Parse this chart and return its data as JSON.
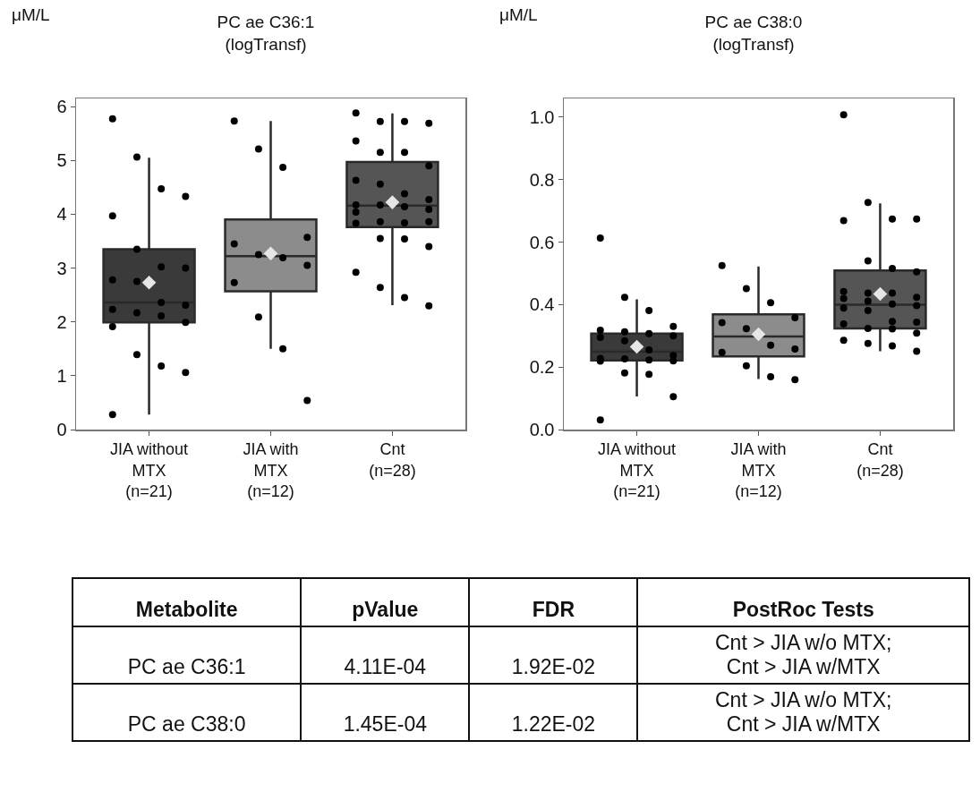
{
  "chart_data": [
    {
      "type": "box",
      "title": "PC ae C36:1\n(logTransf)",
      "ylabel": "μM/L",
      "categories": [
        "JIA without\nMTX\n(n=21)",
        "JIA with\nMTX\n(n=12)",
        "Cnt\n(n=28)"
      ],
      "colors": [
        "#3a3a3a",
        "#8c8c8c",
        "#555555"
      ],
      "boxes": [
        {
          "low": 0.28,
          "q1": 1.99,
          "median": 2.36,
          "q3": 3.35,
          "high": 5.05,
          "mean": 2.73
        },
        {
          "low": 1.5,
          "q1": 2.57,
          "median": 3.22,
          "q3": 3.9,
          "high": 5.73,
          "mean": 3.27
        },
        {
          "low": 2.31,
          "q1": 3.76,
          "median": 4.16,
          "q3": 4.97,
          "high": 5.87,
          "mean": 4.22
        }
      ],
      "series": [
        {
          "type": "scatter",
          "color": "#000000",
          "x": [
            "JIA without\nMTX\n(n=21)",
            "JIA without\nMTX\n(n=21)",
            "JIA without\nMTX\n(n=21)",
            "JIA without\nMTX\n(n=21)",
            "JIA without\nMTX\n(n=21)",
            "JIA without\nMTX\n(n=21)",
            "JIA without\nMTX\n(n=21)",
            "JIA without\nMTX\n(n=21)",
            "JIA without\nMTX\n(n=21)",
            "JIA without\nMTX\n(n=21)",
            "JIA without\nMTX\n(n=21)",
            "JIA without\nMTX\n(n=21)",
            "JIA without\nMTX\n(n=21)",
            "JIA without\nMTX\n(n=21)",
            "JIA without\nMTX\n(n=21)",
            "JIA without\nMTX\n(n=21)",
            "JIA without\nMTX\n(n=21)",
            "JIA without\nMTX\n(n=21)",
            "JIA without\nMTX\n(n=21)",
            "JIA without\nMTX\n(n=21)",
            "JIA without\nMTX\n(n=21)"
          ],
          "values": [
            5.77,
            5.06,
            4.47,
            4.33,
            3.97,
            3.35,
            3.02,
            3.0,
            2.78,
            2.75,
            2.36,
            2.31,
            2.23,
            2.17,
            2.11,
            1.99,
            1.91,
            1.39,
            1.18,
            1.06,
            0.28
          ]
        },
        {
          "type": "scatter",
          "color": "#000000",
          "x": [
            "JIA with\nMTX\n(n=12)",
            "JIA with\nMTX\n(n=12)",
            "JIA with\nMTX\n(n=12)",
            "JIA with\nMTX\n(n=12)",
            "JIA with\nMTX\n(n=12)",
            "JIA with\nMTX\n(n=12)",
            "JIA with\nMTX\n(n=12)",
            "JIA with\nMTX\n(n=12)",
            "JIA with\nMTX\n(n=12)",
            "JIA with\nMTX\n(n=12)",
            "JIA with\nMTX\n(n=12)",
            "JIA with\nMTX\n(n=12)"
          ],
          "values": [
            5.73,
            5.21,
            4.87,
            3.57,
            3.45,
            3.25,
            3.19,
            3.05,
            2.73,
            2.09,
            1.5,
            0.54
          ]
        },
        {
          "type": "scatter",
          "color": "#000000",
          "x": [
            "Cnt\n(n=28)",
            "Cnt\n(n=28)",
            "Cnt\n(n=28)",
            "Cnt\n(n=28)",
            "Cnt\n(n=28)",
            "Cnt\n(n=28)",
            "Cnt\n(n=28)",
            "Cnt\n(n=28)",
            "Cnt\n(n=28)",
            "Cnt\n(n=28)",
            "Cnt\n(n=28)",
            "Cnt\n(n=28)",
            "Cnt\n(n=28)",
            "Cnt\n(n=28)",
            "Cnt\n(n=28)",
            "Cnt\n(n=28)",
            "Cnt\n(n=28)",
            "Cnt\n(n=28)",
            "Cnt\n(n=28)",
            "Cnt\n(n=28)",
            "Cnt\n(n=28)",
            "Cnt\n(n=28)",
            "Cnt\n(n=28)",
            "Cnt\n(n=28)",
            "Cnt\n(n=28)",
            "Cnt\n(n=28)",
            "Cnt\n(n=28)",
            "Cnt\n(n=28)"
          ],
          "values": [
            5.88,
            5.72,
            5.72,
            5.69,
            5.36,
            5.15,
            5.15,
            4.9,
            4.63,
            4.56,
            4.38,
            4.27,
            4.17,
            4.17,
            4.14,
            4.09,
            4.04,
            3.86,
            3.84,
            3.86,
            3.83,
            3.55,
            3.54,
            3.4,
            2.92,
            2.64,
            2.45,
            2.3
          ]
        }
      ],
      "ylim": [
        0,
        6.15
      ],
      "yticks": [
        0,
        1,
        2,
        3,
        4,
        5,
        6
      ],
      "grid": false,
      "marker": "circle"
    },
    {
      "type": "box",
      "title": "PC ae C38:0\n(logTransf)",
      "ylabel": "μM/L",
      "categories": [
        "JIA without\nMTX\n(n=21)",
        "JIA with\nMTX\n(n=12)",
        "Cnt\n(n=28)"
      ],
      "colors": [
        "#3a3a3a",
        "#8c8c8c",
        "#555555"
      ],
      "boxes": [
        {
          "low": 0.106,
          "q1": 0.221,
          "median": 0.249,
          "q3": 0.307,
          "high": 0.417,
          "mean": 0.265
        },
        {
          "low": 0.162,
          "q1": 0.234,
          "median": 0.298,
          "q3": 0.369,
          "high": 0.522,
          "mean": 0.305
        },
        {
          "low": 0.251,
          "q1": 0.324,
          "median": 0.4,
          "q3": 0.509,
          "high": 0.724,
          "mean": 0.434
        }
      ],
      "series": [
        {
          "type": "scatter",
          "color": "#000000",
          "x": [
            "JIA without\nMTX\n(n=21)",
            "JIA without\nMTX\n(n=21)",
            "JIA without\nMTX\n(n=21)",
            "JIA without\nMTX\n(n=21)",
            "JIA without\nMTX\n(n=21)",
            "JIA without\nMTX\n(n=21)",
            "JIA without\nMTX\n(n=21)",
            "JIA without\nMTX\n(n=21)",
            "JIA without\nMTX\n(n=21)",
            "JIA without\nMTX\n(n=21)",
            "JIA without\nMTX\n(n=21)",
            "JIA without\nMTX\n(n=21)",
            "JIA without\nMTX\n(n=21)",
            "JIA without\nMTX\n(n=21)",
            "JIA without\nMTX\n(n=21)",
            "JIA without\nMTX\n(n=21)",
            "JIA without\nMTX\n(n=21)",
            "JIA without\nMTX\n(n=21)",
            "JIA without\nMTX\n(n=21)",
            "JIA without\nMTX\n(n=21)",
            "JIA without\nMTX\n(n=21)"
          ],
          "values": [
            0.613,
            0.423,
            0.381,
            0.33,
            0.318,
            0.313,
            0.307,
            0.3,
            0.295,
            0.284,
            0.255,
            0.237,
            0.228,
            0.226,
            0.223,
            0.22,
            0.219,
            0.181,
            0.177,
            0.105,
            0.031
          ]
        },
        {
          "type": "scatter",
          "color": "#000000",
          "x": [
            "JIA with\nMTX\n(n=12)",
            "JIA with\nMTX\n(n=12)",
            "JIA with\nMTX\n(n=12)",
            "JIA with\nMTX\n(n=12)",
            "JIA with\nMTX\n(n=12)",
            "JIA with\nMTX\n(n=12)",
            "JIA with\nMTX\n(n=12)",
            "JIA with\nMTX\n(n=12)",
            "JIA with\nMTX\n(n=12)",
            "JIA with\nMTX\n(n=12)",
            "JIA with\nMTX\n(n=12)",
            "JIA with\nMTX\n(n=12)"
          ],
          "values": [
            0.525,
            0.451,
            0.406,
            0.358,
            0.342,
            0.323,
            0.27,
            0.258,
            0.247,
            0.204,
            0.169,
            0.16
          ]
        },
        {
          "type": "scatter",
          "color": "#000000",
          "x": [
            "Cnt\n(n=28)",
            "Cnt\n(n=28)",
            "Cnt\n(n=28)",
            "Cnt\n(n=28)",
            "Cnt\n(n=28)",
            "Cnt\n(n=28)",
            "Cnt\n(n=28)",
            "Cnt\n(n=28)",
            "Cnt\n(n=28)",
            "Cnt\n(n=28)",
            "Cnt\n(n=28)",
            "Cnt\n(n=28)",
            "Cnt\n(n=28)",
            "Cnt\n(n=28)",
            "Cnt\n(n=28)",
            "Cnt\n(n=28)",
            "Cnt\n(n=28)",
            "Cnt\n(n=28)",
            "Cnt\n(n=28)",
            "Cnt\n(n=28)",
            "Cnt\n(n=28)",
            "Cnt\n(n=28)",
            "Cnt\n(n=28)",
            "Cnt\n(n=28)",
            "Cnt\n(n=28)",
            "Cnt\n(n=28)",
            "Cnt\n(n=28)",
            "Cnt\n(n=28)"
          ],
          "values": [
            1.008,
            0.727,
            0.674,
            0.674,
            0.669,
            0.54,
            0.516,
            0.505,
            0.442,
            0.437,
            0.437,
            0.423,
            0.42,
            0.411,
            0.402,
            0.397,
            0.389,
            0.381,
            0.346,
            0.344,
            0.338,
            0.324,
            0.322,
            0.309,
            0.286,
            0.276,
            0.268,
            0.251
          ]
        }
      ],
      "ylim": [
        0,
        1.06
      ],
      "yticks": [
        {
          "value": 0,
          "label": "0.0"
        },
        0.2,
        0.4,
        0.6,
        0.8,
        {
          "value": 1,
          "label": "1.0"
        }
      ],
      "grid": false,
      "marker": "circle"
    },
    {
      "type": "other",
      "categories": [
        "Metabolite",
        "pValue",
        "FDR",
        "PostRoc Tests"
      ],
      "cell_labels": [
        [
          "PC ae C36:1",
          "4.11E-04",
          "1.92E-02",
          "Cnt > JIA w/o MTX;\nCnt > JIA w/MTX"
        ],
        [
          "PC ae C38:0",
          "1.45E-04",
          "1.22E-02",
          "Cnt > JIA w/o MTX;\nCnt > JIA w/MTX"
        ]
      ]
    }
  ]
}
